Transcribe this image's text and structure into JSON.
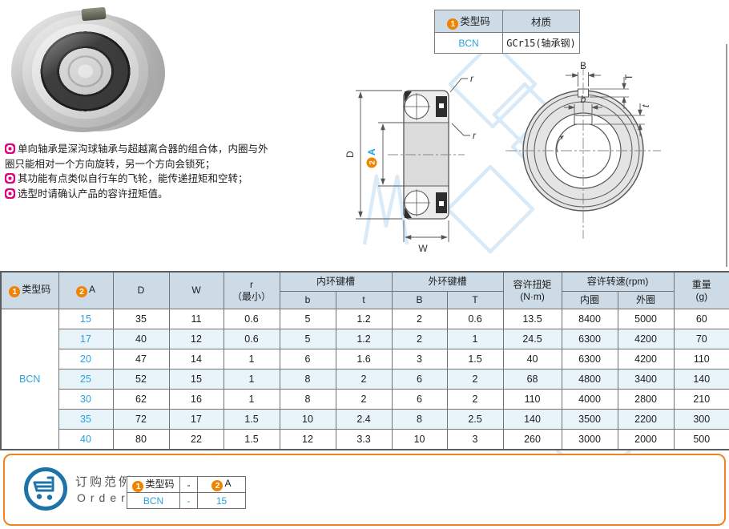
{
  "colors": {
    "accent_orange": "#f08300",
    "accent_blue": "#29a3dc",
    "header_bg": "#ccdbe6",
    "row_alt": "#e8f3fa",
    "bullet_magenta": "#e5007f",
    "cart_blue": "#1d72a8",
    "order_border": "#f0831e"
  },
  "material_table": {
    "header": [
      {
        "badge": "1",
        "label": "类型码"
      },
      {
        "label": "材质"
      }
    ],
    "row": {
      "type_code": "BCN",
      "material": "GCr15(轴承钢)"
    }
  },
  "notes": [
    "单向轴承是深沟球轴承与超越离合器的组合体，内圈与外圈只能相对一个方向旋转，另一个方向会锁死；",
    "其功能有点类似自行车的飞轮，能传递扭矩和空转；",
    "选型时请确认产品的容许扭矩值。"
  ],
  "diagram": {
    "section": {
      "d": "D",
      "a_badge": "2",
      "a": "A",
      "w": "W",
      "r_top": "r",
      "r_side": "r"
    },
    "front": {
      "B": "B",
      "T": "T",
      "b": "b",
      "t": "t"
    }
  },
  "main_table": {
    "header": {
      "type_code": {
        "badge": "1",
        "label": "类型码"
      },
      "a": {
        "badge": "2",
        "label": "A"
      },
      "d": "D",
      "w": "W",
      "r_line1": "r",
      "r_line2": "（最小）",
      "inner_key": "内环键槽",
      "outer_key": "外环键槽",
      "b": "b",
      "t": "t",
      "B": "B",
      "T": "T",
      "torque_line1": "容许扭矩",
      "torque_line2": "(N·m)",
      "speed": "容许转速(rpm)",
      "speed_inner": "内圈",
      "speed_outer": "外圈",
      "weight_line1": "重量",
      "weight_line2": "(g)"
    },
    "type_code": "BCN",
    "rows": [
      {
        "A": "15",
        "D": "35",
        "W": "11",
        "r": "0.6",
        "b": "5",
        "t": "1.2",
        "B": "2",
        "T": "0.6",
        "torque": "13.5",
        "rpm_in": "8400",
        "rpm_out": "5000",
        "weight": "60"
      },
      {
        "A": "17",
        "D": "40",
        "W": "12",
        "r": "0.6",
        "b": "5",
        "t": "1.2",
        "B": "2",
        "T": "1",
        "torque": "24.5",
        "rpm_in": "6300",
        "rpm_out": "4200",
        "weight": "70"
      },
      {
        "A": "20",
        "D": "47",
        "W": "14",
        "r": "1",
        "b": "6",
        "t": "1.6",
        "B": "3",
        "T": "1.5",
        "torque": "40",
        "rpm_in": "6300",
        "rpm_out": "4200",
        "weight": "110"
      },
      {
        "A": "25",
        "D": "52",
        "W": "15",
        "r": "1",
        "b": "8",
        "t": "2",
        "B": "6",
        "T": "2",
        "torque": "68",
        "rpm_in": "4800",
        "rpm_out": "3400",
        "weight": "140"
      },
      {
        "A": "30",
        "D": "62",
        "W": "16",
        "r": "1",
        "b": "8",
        "t": "2",
        "B": "6",
        "T": "2",
        "torque": "110",
        "rpm_in": "4000",
        "rpm_out": "2800",
        "weight": "210"
      },
      {
        "A": "35",
        "D": "72",
        "W": "17",
        "r": "1.5",
        "b": "10",
        "t": "2.4",
        "B": "8",
        "T": "2.5",
        "torque": "140",
        "rpm_in": "3500",
        "rpm_out": "2200",
        "weight": "300"
      },
      {
        "A": "40",
        "D": "80",
        "W": "22",
        "r": "1.5",
        "b": "12",
        "t": "3.3",
        "B": "10",
        "T": "3",
        "torque": "260",
        "rpm_in": "3000",
        "rpm_out": "2000",
        "weight": "500"
      }
    ]
  },
  "order": {
    "title_cn": "订购范例",
    "title_en": "Order",
    "header": [
      {
        "badge": "1",
        "label": "类型码"
      },
      {
        "label": "-"
      },
      {
        "badge": "2",
        "label": "A"
      }
    ],
    "row": [
      "BCN",
      "-",
      "15"
    ]
  }
}
